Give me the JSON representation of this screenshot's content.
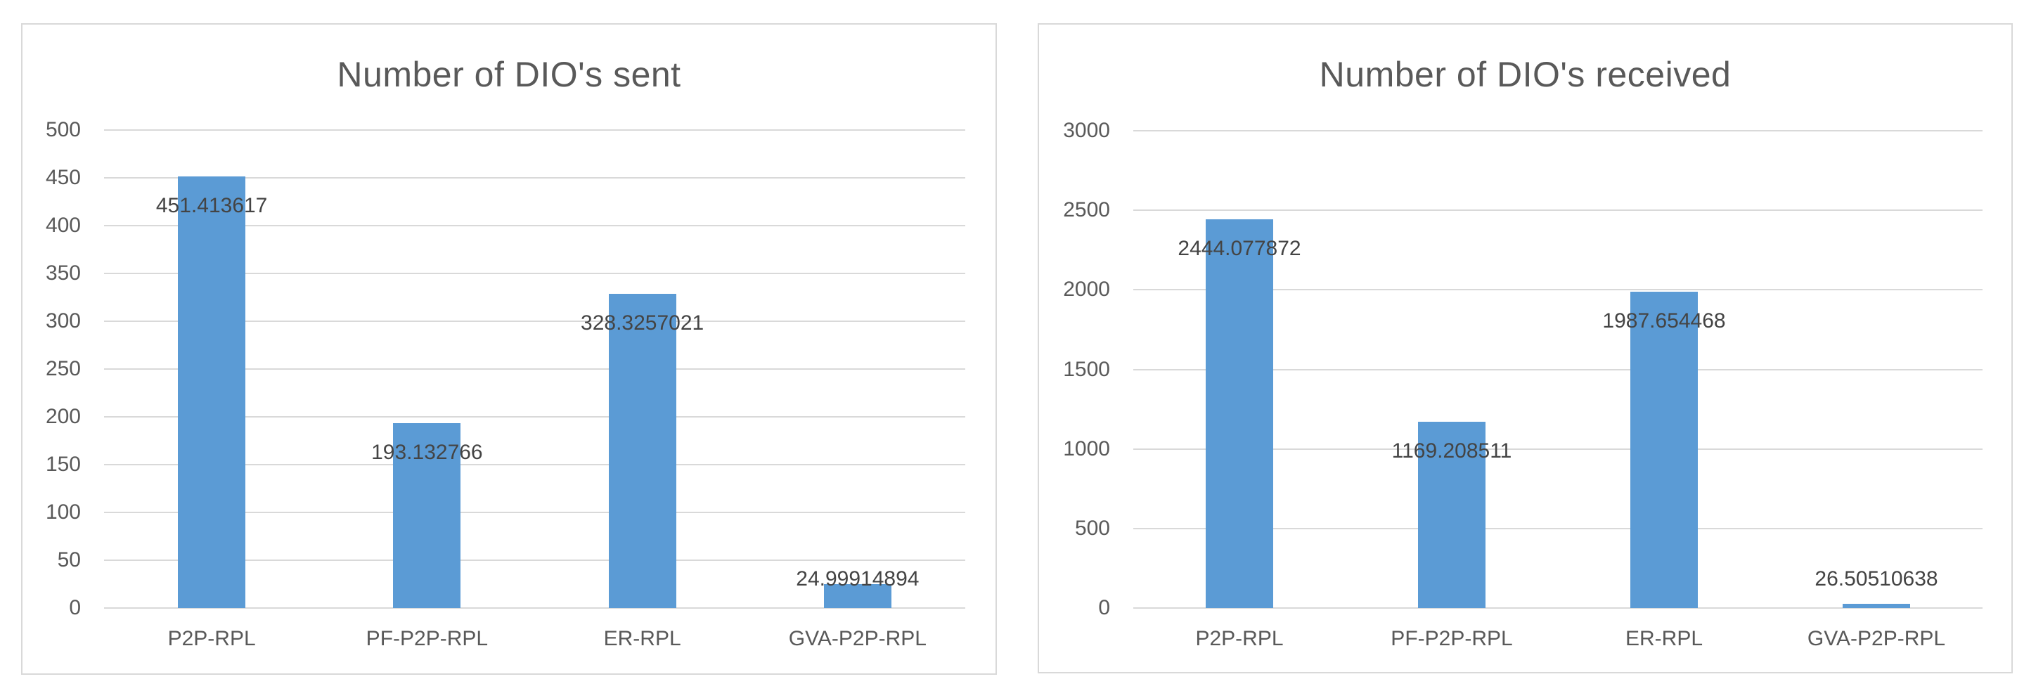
{
  "styles": {
    "background": "#ffffff",
    "chart_border_color": "#d9d9d9",
    "grid_color": "#d9d9d9",
    "title_color": "#595959",
    "tick_color": "#595959",
    "data_label_color": "#444444"
  },
  "chart_data": [
    {
      "type": "bar",
      "title": "Number of DIO's sent",
      "categories": [
        "P2P-RPL",
        "PF-P2P-RPL",
        "ER-RPL",
        "GVA-P2P-RPL"
      ],
      "values": [
        451.413617,
        193.132766,
        328.3257021,
        24.99914894
      ],
      "data_labels": [
        "451.413617",
        "193.132766",
        "328.3257021",
        "24.99914894"
      ],
      "xlabel": "",
      "ylabel": "",
      "ylim": [
        0,
        500
      ],
      "ytick_step": 50,
      "ytick_labels": [
        "0",
        "50",
        "100",
        "150",
        "200",
        "250",
        "300",
        "350",
        "400",
        "450",
        "500"
      ],
      "grid": true,
      "legend_position": "none",
      "bar_color": "#5b9bd5"
    },
    {
      "type": "bar",
      "title": "Number of DIO's received",
      "categories": [
        "P2P-RPL",
        "PF-P2P-RPL",
        "ER-RPL",
        "GVA-P2P-RPL"
      ],
      "values": [
        2444.077872,
        1169.208511,
        1987.654468,
        26.50510638
      ],
      "data_labels": [
        "2444.077872",
        "1169.208511",
        "1987.654468",
        "26.50510638"
      ],
      "xlabel": "",
      "ylabel": "",
      "ylim": [
        0,
        3000
      ],
      "ytick_step": 500,
      "ytick_labels": [
        "0",
        "500",
        "1000",
        "1500",
        "2000",
        "2500",
        "3000"
      ],
      "grid": true,
      "legend_position": "none",
      "bar_color": "#5b9bd5"
    }
  ]
}
